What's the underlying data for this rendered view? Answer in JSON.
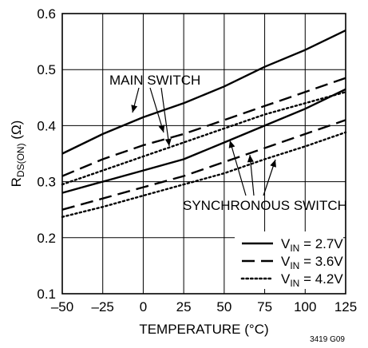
{
  "chart_data": {
    "type": "line",
    "xlabel": "TEMPERATURE (°C)",
    "ylabel": {
      "main": "R",
      "sub": "DS(ON)",
      "unit": " (Ω)"
    },
    "xlim": [
      -50,
      125
    ],
    "ylim": [
      0.1,
      0.6
    ],
    "grid": true,
    "x_ticks": [
      "–50",
      "–25",
      "0",
      "25",
      "50",
      "75",
      "100",
      "125"
    ],
    "y_ticks": [
      "0.1",
      "0.2",
      "0.3",
      "0.4",
      "0.5",
      "0.6"
    ],
    "legend_position": "bottom-right",
    "legend": [
      {
        "main": "V",
        "sub": "IN",
        "value": " = 2.7V",
        "style": "solid"
      },
      {
        "main": "V",
        "sub": "IN",
        "value": " = 3.6V",
        "style": "dashed"
      },
      {
        "main": "V",
        "sub": "IN",
        "value": " = 4.2V",
        "style": "dotted"
      }
    ],
    "annotations": {
      "main_switch": "MAIN SWITCH",
      "synchronous_switch": "SYNCHRONOUS SWITCH"
    },
    "figure_id": "3419 G09",
    "x": [
      -50,
      -25,
      0,
      25,
      50,
      75,
      100,
      125
    ],
    "series": [
      {
        "group": "main",
        "style": "solid",
        "values": [
          0.35,
          0.385,
          0.415,
          0.44,
          0.47,
          0.505,
          0.535,
          0.57
        ]
      },
      {
        "group": "main",
        "style": "dashed",
        "values": [
          0.31,
          0.34,
          0.365,
          0.385,
          0.41,
          0.435,
          0.46,
          0.485
        ]
      },
      {
        "group": "main",
        "style": "dotted",
        "values": [
          0.295,
          0.32,
          0.345,
          0.37,
          0.395,
          0.42,
          0.44,
          0.46
        ]
      },
      {
        "group": "synchronous",
        "style": "solid",
        "values": [
          0.28,
          0.3,
          0.32,
          0.34,
          0.37,
          0.4,
          0.43,
          0.465
        ]
      },
      {
        "group": "synchronous",
        "style": "dashed",
        "values": [
          0.25,
          0.27,
          0.29,
          0.31,
          0.335,
          0.36,
          0.385,
          0.41
        ]
      },
      {
        "group": "synchronous",
        "style": "dotted",
        "values": [
          0.237,
          0.255,
          0.275,
          0.295,
          0.315,
          0.34,
          0.363,
          0.388
        ]
      }
    ]
  }
}
